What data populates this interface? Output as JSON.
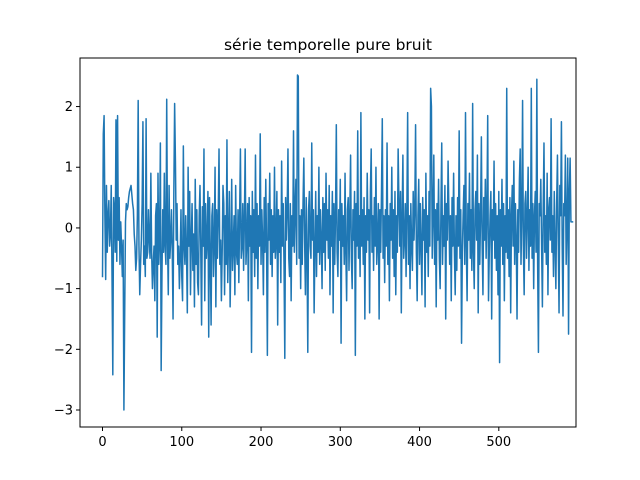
{
  "chart_data": {
    "type": "line",
    "title": "série temporelle pure bruit",
    "xlabel": "",
    "ylabel": "",
    "xlim": [
      -28.4,
      597.4
    ],
    "ylim": [
      -3.28,
      2.8
    ],
    "xticks": [
      0,
      100,
      200,
      300,
      400,
      500
    ],
    "yticks": [
      -3,
      -2,
      -1,
      0,
      1,
      2
    ],
    "xtick_labels": [
      "0",
      "100",
      "200",
      "300",
      "400",
      "500"
    ],
    "ytick_labels": [
      "−3",
      "−2",
      "−1",
      "0",
      "1",
      "2"
    ],
    "grid": false,
    "series": [
      {
        "color": "#1f77b4",
        "x_start": 0,
        "x_step": 1,
        "values": [
          -0.8,
          1.55,
          1.85,
          0.2,
          -0.85,
          0.7,
          -0.4,
          0.2,
          0.45,
          -0.3,
          -0.1,
          0.7,
          -0.8,
          -2.42,
          0.5,
          0.3,
          -0.4,
          1.78,
          -0.55,
          1.85,
          -0.2,
          0.5,
          -0.6,
          0.1,
          -0.3,
          -0.8,
          -0.2,
          -3.0,
          -1.4,
          0.1,
          0.4,
          0.3,
          0.35,
          0.5,
          0.6,
          0.65,
          0.7,
          0.55,
          0.4,
          0.3,
          -0.1,
          -0.3,
          -0.7,
          -0.5,
          0.2,
          2.1,
          -0.3,
          -1.1,
          -0.6,
          -0.2,
          0.4,
          1.75,
          -0.6,
          -0.3,
          -0.8,
          1.8,
          -0.5,
          -0.4,
          0.3,
          -0.2,
          -0.5,
          0.9,
          -0.4,
          -1.0,
          -0.6,
          -0.3,
          -1.2,
          0.2,
          0.4,
          -1.8,
          0.9,
          -0.6,
          -0.2,
          1.4,
          -2.35,
          -0.8,
          0.3,
          -0.4,
          0.9,
          -0.3,
          -0.6,
          2.12,
          -0.2,
          -1.1,
          0.7,
          -0.5,
          -0.2,
          0.3,
          -0.4,
          -1.5,
          0.6,
          2.05,
          1.1,
          -0.2,
          0.4,
          -0.6,
          -0.3,
          -1.0,
          -0.5,
          0.3,
          -0.8,
          -1.2,
          1.35,
          -0.3,
          -0.6,
          0.2,
          -0.4,
          -1.4,
          1.0,
          -0.3,
          0.6,
          -1.1,
          -0.2,
          0.4,
          -0.7,
          -0.1,
          -1.3,
          0.8,
          -0.6,
          0.3,
          -0.9,
          -1.1,
          0.2,
          0.7,
          -0.4,
          -1.6,
          0.35,
          -0.3,
          1.3,
          -1.2,
          0.4,
          -0.5,
          -0.2,
          0.6,
          -1.8,
          0.5,
          -0.4,
          -1.6,
          0.2,
          0.4,
          -0.8,
          -0.3,
          1.0,
          -1.3,
          0.3,
          -0.5,
          0.2,
          1.3,
          -0.6,
          -0.2,
          -1.2,
          -0.4,
          0.7,
          0.4,
          -1.1,
          0.2,
          -0.6,
          1.45,
          -0.9,
          -0.2,
          0.6,
          -1.3,
          -0.4,
          0.8,
          -0.7,
          -0.3,
          0.2,
          -1.1,
          0.7,
          -0.4,
          -0.6,
          0.3,
          -0.9,
          0.2,
          1.3,
          -0.5,
          -0.3,
          0.4,
          -0.7,
          0.1,
          1.3,
          -0.6,
          -0.2,
          0.4,
          -1.2,
          0.5,
          -0.3,
          0.2,
          -2.05,
          0.6,
          -0.4,
          0.3,
          -0.8,
          1.2,
          -0.5,
          0.4,
          -1.0,
          0.2,
          -0.3,
          1.55,
          -0.6,
          0.3,
          -0.2,
          -1.1,
          0.5,
          -0.4,
          0.8,
          -0.3,
          -2.1,
          0.4,
          -0.2,
          0.9,
          -0.6,
          0.3,
          -0.8,
          0.2,
          -0.4,
          1.0,
          -0.5,
          -0.2,
          0.6,
          -1.6,
          0.3,
          -0.4,
          0.2,
          -0.9,
          1.1,
          -0.3,
          0.4,
          -0.6,
          -2.15,
          0.5,
          -0.2,
          0.3,
          1.3,
          -0.5,
          -0.8,
          0.4,
          -1.2,
          0.2,
          -0.3,
          1.6,
          -0.4,
          0.3,
          0.8,
          -0.6,
          2.52,
          2.5,
          -0.5,
          0.2,
          -1.0,
          0.3,
          -0.6,
          0.4,
          1.15,
          -0.2,
          -1.1,
          0.5,
          -0.4,
          -2.05,
          0.3,
          0.6,
          -0.3,
          -0.5,
          1.4,
          -0.2,
          0.3,
          -1.4,
          -0.3,
          0.6,
          -0.8,
          0.2,
          -0.4,
          1.0,
          -0.6,
          0.3,
          -0.2,
          -1.0,
          0.5,
          -0.4,
          0.4,
          -0.7,
          0.9,
          -0.2,
          0.3,
          -0.5,
          0.7,
          -1.1,
          0.2,
          -0.3,
          0.6,
          -1.4,
          0.4,
          -0.6,
          0.2,
          1.7,
          -0.4,
          -0.8,
          0.3,
          -0.2,
          0.8,
          -1.9,
          0.4,
          -0.3,
          0.2,
          -0.6,
          0.9,
          -0.4,
          -1.2,
          0.3,
          0.5,
          -0.7,
          0.2,
          1.2,
          -0.5,
          -1.0,
          0.3,
          -0.2,
          0.6,
          -2.1,
          0.4,
          -0.3,
          1.6,
          -0.5,
          0.2,
          -0.8,
          1.9,
          -0.3,
          0.3,
          -0.6,
          0.5,
          -1.5,
          0.2,
          -0.4,
          0.9,
          -0.2,
          0.3,
          -1.4,
          0.6,
          1.3,
          -0.4,
          0.2,
          -0.7,
          0.5,
          -0.3,
          1.0,
          -0.6,
          -0.2,
          0.4,
          -1.5,
          0.3,
          -0.4,
          0.6,
          1.8,
          -0.5,
          0.2,
          -0.9,
          0.3,
          -0.3,
          1.4,
          -0.6,
          0.2,
          -1.2,
          0.4,
          -0.2,
          1.0,
          -0.5,
          0.3,
          -0.8,
          0.6,
          -1.1,
          0.2,
          -0.4,
          1.3,
          0.4,
          -0.3,
          0.6,
          -1.4,
          0.2,
          1.2,
          -0.5,
          -0.2,
          0.4,
          -0.8,
          0.3,
          1.9,
          -0.6,
          0.2,
          -1.0,
          0.4,
          -0.3,
          -0.7,
          0.6,
          -0.2,
          0.3,
          1.7,
          -0.4,
          -1.2,
          0.2,
          0.8,
          -0.6,
          0.4,
          -0.3,
          -1.1,
          0.5,
          -0.2,
          0.3,
          -1.3,
          0.9,
          -0.4,
          0.2,
          -0.8,
          0.6,
          -0.3,
          2.3,
          2.0,
          -0.5,
          0.2,
          1.2,
          -0.6,
          0.3,
          -1.3,
          0.4,
          -0.2,
          0.8,
          -0.5,
          -1.0,
          0.3,
          1.4,
          -0.6,
          0.2,
          -0.3,
          0.7,
          -1.5,
          0.4,
          -0.2,
          1.1,
          0.3,
          -0.6,
          0.2,
          -1.2,
          0.5,
          -0.3,
          0.9,
          -0.4,
          -1.1,
          0.2,
          -0.7,
          0.5,
          -0.3,
          1.6,
          -0.5,
          0.3,
          -1.9,
          -0.4,
          0.2,
          0.7,
          -0.6,
          1.9,
          -0.3,
          -1.2,
          0.4,
          -0.2,
          0.9,
          -0.5,
          0.3,
          -0.7,
          2.05,
          -0.4,
          -1.0,
          0.3,
          0.6,
          -0.2,
          1.2,
          -1.4,
          0.4,
          -0.6,
          0.2,
          1.5,
          -0.3,
          -1.1,
          0.5,
          -0.2,
          0.8,
          -0.5,
          0.3,
          1.85,
          -1.2,
          -0.4,
          0.2,
          0.6,
          -1.5,
          0.3,
          -0.2,
          1.1,
          -0.5,
          0.4,
          -0.7,
          0.2,
          -1.1,
          0.6,
          -2.22,
          0.3,
          -0.3,
          0.8,
          -0.6,
          0.4,
          -1.2,
          0.2,
          -0.4,
          2.3,
          -0.5,
          0.3,
          -0.8,
          0.5,
          -1.4,
          0.2,
          0.7,
          -0.3,
          1.1,
          -0.6,
          0.4,
          -0.2,
          -1.5,
          0.3,
          -0.4,
          0.8,
          1.3,
          -0.6,
          0.2,
          2.1,
          -0.3,
          -1.1,
          0.4,
          0.6,
          -0.5,
          0.2,
          1.0,
          -0.7,
          0.3,
          -0.3,
          2.3,
          -0.5,
          0.4,
          -1.0,
          0.2,
          0.6,
          -0.4,
          2.45,
          -0.6,
          -2.05,
          0.4,
          0.2,
          0.8,
          -0.3,
          -1.3,
          0.3,
          1.4,
          -0.4,
          0.2,
          -0.6,
          0.9,
          -1.1,
          0.3,
          0.5,
          -0.2,
          1.8,
          -0.4,
          0.2,
          -0.8,
          0.6,
          -0.3,
          -1.0,
          0.4,
          1.2,
          -0.2,
          -1.4,
          0.7,
          0.2,
          1.75,
          -0.3,
          -1.45,
          0.4,
          0.2,
          1.2,
          -0.6,
          0.1,
          1.15,
          -1.75,
          0.6,
          1.15,
          0.1,
          0.1,
          0.1
        ]
      }
    ]
  }
}
